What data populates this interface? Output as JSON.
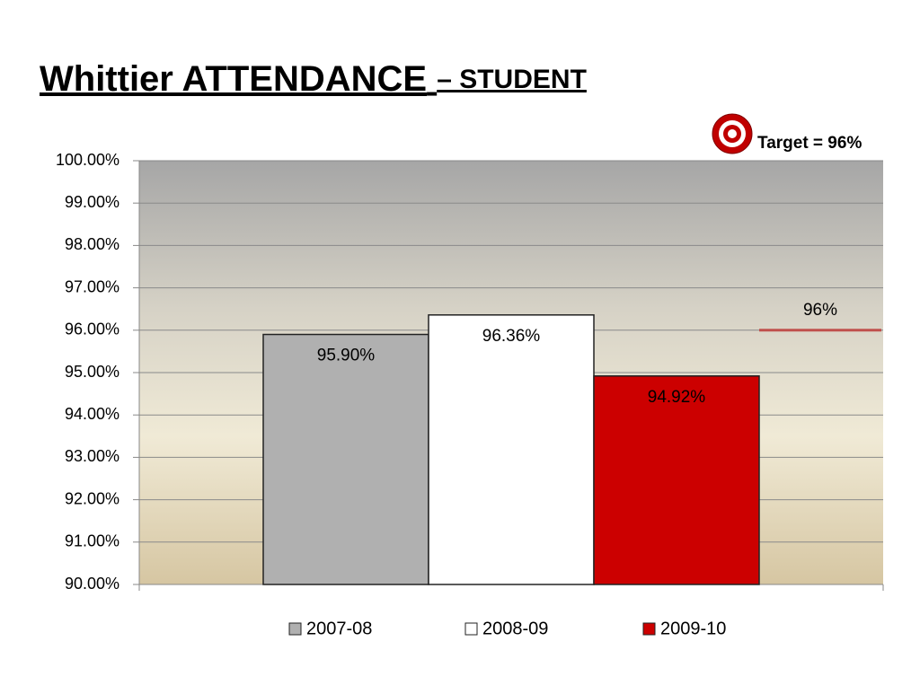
{
  "chart_data": {
    "type": "bar",
    "title": [
      "Whittier ATTENDANCE",
      "– STUDENT"
    ],
    "annotation": "Target = 96%",
    "target": {
      "value": 96,
      "label": "96%",
      "color": "#c0504d"
    },
    "categories": [
      null
    ],
    "series": [
      {
        "name": "2007-08",
        "color": "#b0b0b0",
        "values": [
          95.9
        ],
        "value_labels": [
          "95.90%"
        ]
      },
      {
        "name": "2008-09",
        "color": "#ffffff",
        "values": [
          96.36
        ],
        "value_labels": [
          "96.36%"
        ]
      },
      {
        "name": "2009-10",
        "color": "#cc0000",
        "values": [
          94.92
        ],
        "value_labels": [
          "94.92%"
        ]
      }
    ],
    "ylim": [
      90,
      100
    ],
    "yticks": [
      {
        "value": 90,
        "label": "90.00%"
      },
      {
        "value": 91,
        "label": "91.00%"
      },
      {
        "value": 92,
        "label": "92.00%"
      },
      {
        "value": 93,
        "label": "93.00%"
      },
      {
        "value": 94,
        "label": "94.00%"
      },
      {
        "value": 95,
        "label": "95.00%"
      },
      {
        "value": 96,
        "label": "96.00%"
      },
      {
        "value": 97,
        "label": "97.00%"
      },
      {
        "value": 98,
        "label": "98.00%"
      },
      {
        "value": 99,
        "label": "99.00%"
      },
      {
        "value": 100,
        "label": "100.00%"
      }
    ],
    "grid": true,
    "legend": "bottom"
  }
}
